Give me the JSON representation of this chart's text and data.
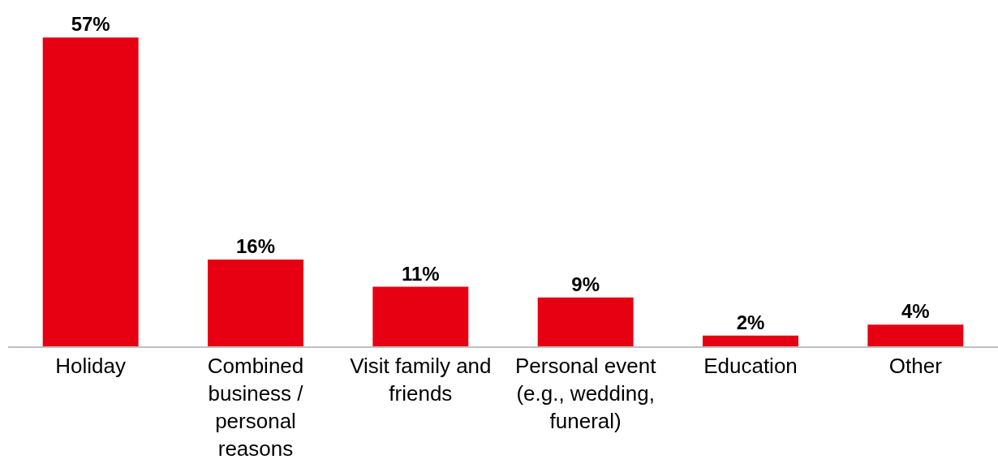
{
  "chart_data": {
    "type": "bar",
    "categories": [
      "Holiday",
      "Combined business / personal reasons",
      "Visit family and friends",
      "Personal event (e.g., wedding, funeral)",
      "Education",
      "Other"
    ],
    "values": [
      57,
      16,
      11,
      9,
      2,
      4
    ],
    "value_labels": [
      "57%",
      "16%",
      "11%",
      "9%",
      "2%",
      "4%"
    ],
    "color": "#e60012"
  }
}
